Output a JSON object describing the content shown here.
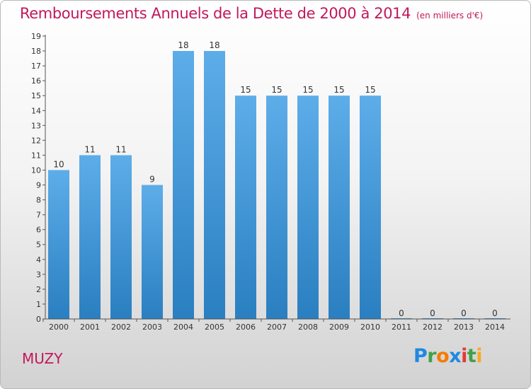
{
  "title": "Remboursements Annuels de la Dette de 2000 à 2014",
  "subtitle": "(en milliers d'€)",
  "commune": "MUZY",
  "logo": {
    "text": "Proxiti",
    "letters": [
      {
        "ch": "P",
        "color": "#1e88e5"
      },
      {
        "ch": "r",
        "color": "#43a047"
      },
      {
        "ch": "o",
        "color": "#f57c00"
      },
      {
        "ch": "x",
        "color": "#1e88e5"
      },
      {
        "ch": "i",
        "color": "#e53935"
      },
      {
        "ch": "t",
        "color": "#43a047"
      },
      {
        "ch": "i",
        "color": "#f9a825"
      }
    ]
  },
  "colors": {
    "bar_light": "#5dade9",
    "bar_dark": "#2a7fc0",
    "title": "#c2185b",
    "axis": "#555555"
  },
  "chart_data": {
    "type": "bar",
    "categories": [
      "2000",
      "2001",
      "2002",
      "2003",
      "2004",
      "2005",
      "2006",
      "2007",
      "2008",
      "2009",
      "2010",
      "2011",
      "2012",
      "2013",
      "2014"
    ],
    "values": [
      10,
      11,
      11,
      9,
      18,
      18,
      15,
      15,
      15,
      15,
      15,
      0,
      0,
      0,
      0
    ],
    "ylim": [
      0,
      19
    ],
    "yticks": [
      0,
      1,
      2,
      3,
      4,
      5,
      6,
      7,
      8,
      9,
      10,
      11,
      12,
      13,
      14,
      15,
      16,
      17,
      18,
      19
    ],
    "title": "Remboursements Annuels de la Dette de 2000 à 2014",
    "xlabel": "",
    "ylabel": "",
    "grid": false,
    "legend": "none"
  }
}
